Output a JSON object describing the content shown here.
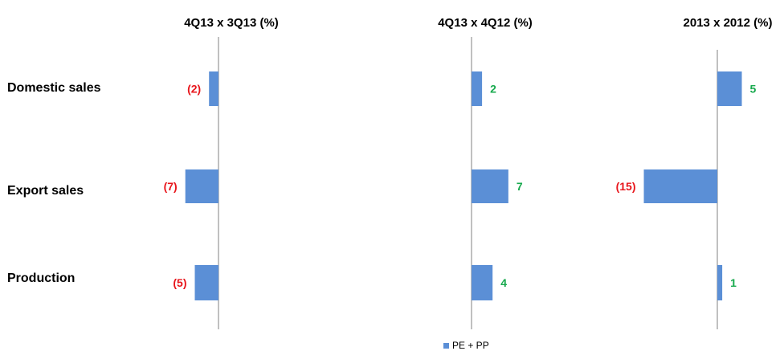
{
  "chart_data": {
    "type": "bar",
    "orientation": "horizontal",
    "categories": [
      "Domestic sales",
      "Export sales",
      "Production"
    ],
    "legend": {
      "label": "PE + PP",
      "position": "bottom"
    },
    "colors": {
      "bar": "#5B8FD6",
      "negative_label": "#E8151B",
      "positive_label": "#17A94D",
      "axis": "#808080"
    },
    "panels": [
      {
        "title": "4Q13 x 3Q13 (%)",
        "series": [
          {
            "name": "PE + PP",
            "values": [
              -2,
              -7,
              -5
            ]
          }
        ],
        "labels": [
          "(2)",
          "(7)",
          "(5)"
        ]
      },
      {
        "title": "4Q13 x 4Q12 (%)",
        "series": [
          {
            "name": "PE + PP",
            "values": [
              2,
              7,
              4
            ]
          }
        ],
        "labels": [
          "2",
          "7",
          "4"
        ]
      },
      {
        "title": "2013 x 2012 (%)",
        "series": [
          {
            "name": "PE + PP",
            "values": [
              5,
              -15,
              1
            ]
          }
        ],
        "labels": [
          "5",
          "(15)",
          "1"
        ]
      }
    ]
  }
}
